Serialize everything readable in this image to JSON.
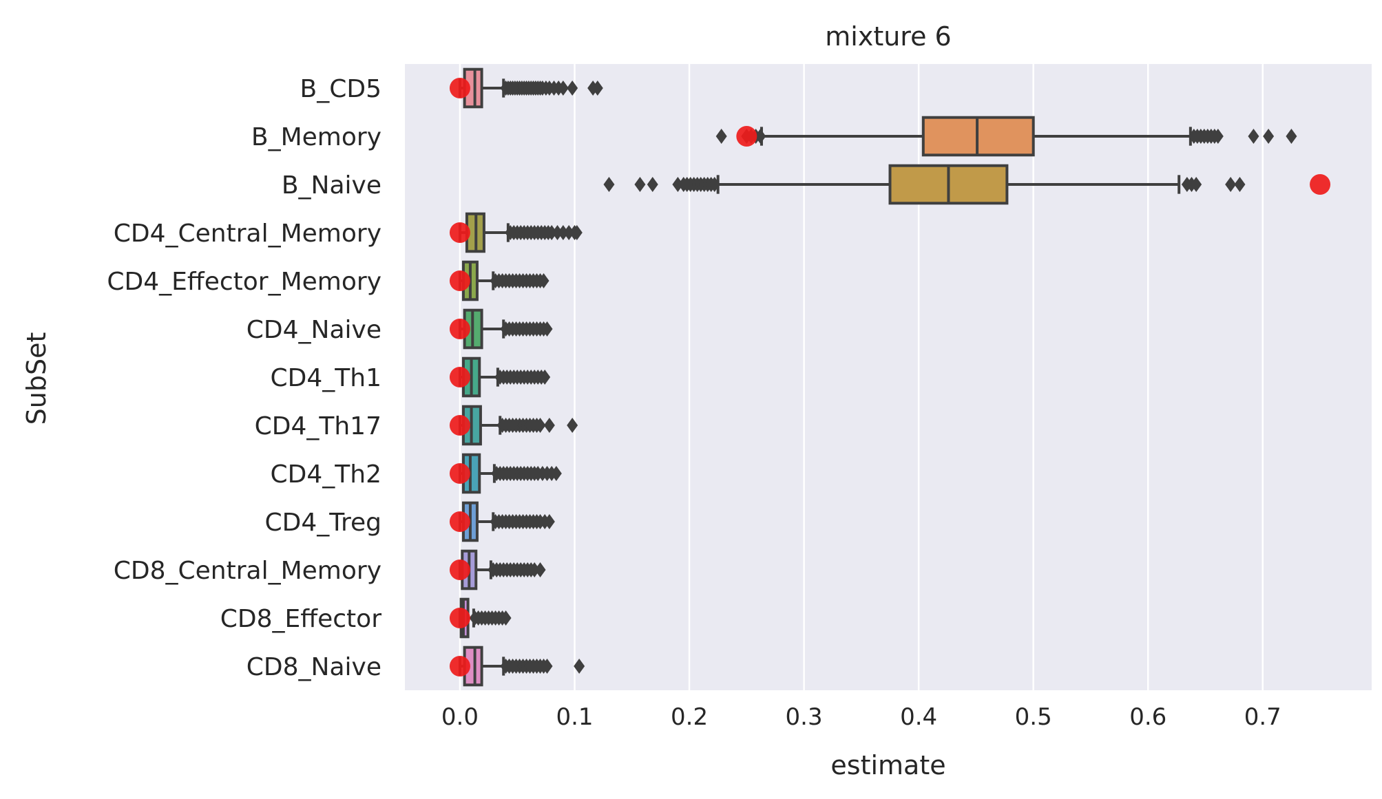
{
  "chart_data": {
    "type": "boxplot",
    "title": "mixture 6",
    "xlabel": "estimate",
    "ylabel": "SubSet",
    "xlim": [
      -0.048,
      0.795
    ],
    "xticks": [
      "0.0",
      "0.1",
      "0.2",
      "0.3",
      "0.4",
      "0.5",
      "0.6",
      "0.7"
    ],
    "grid": true,
    "background": "#eaeaf2",
    "box_edge_color": "#3f3f3f",
    "truth_marker_color": "#ee1b1b",
    "categories": [
      {
        "name": "B_CD5",
        "color": "#e8919c",
        "q1": 0.004,
        "median": 0.013,
        "q3": 0.019,
        "whisker_low": 0.0,
        "whisker_high": 0.038,
        "outliers": [
          0.04,
          0.042,
          0.044,
          0.046,
          0.048,
          0.05,
          0.052,
          0.054,
          0.056,
          0.058,
          0.06,
          0.062,
          0.064,
          0.066,
          0.068,
          0.07,
          0.072,
          0.075,
          0.078,
          0.082,
          0.086,
          0.09,
          0.098,
          0.116,
          0.12
        ],
        "truth": 0.0
      },
      {
        "name": "B_Memory",
        "color": "#e0935e",
        "q1": 0.404,
        "median": 0.451,
        "q3": 0.5,
        "whisker_low": 0.263,
        "whisker_high": 0.637,
        "outliers": [
          0.228,
          0.25,
          0.254,
          0.258,
          0.262,
          0.64,
          0.643,
          0.646,
          0.649,
          0.652,
          0.655,
          0.658,
          0.661,
          0.692,
          0.705,
          0.725
        ],
        "truth": 0.25
      },
      {
        "name": "B_Naive",
        "color": "#c19a49",
        "q1": 0.375,
        "median": 0.426,
        "q3": 0.477,
        "whisker_low": 0.225,
        "whisker_high": 0.627,
        "outliers": [
          0.13,
          0.157,
          0.168,
          0.19,
          0.195,
          0.198,
          0.201,
          0.204,
          0.207,
          0.21,
          0.213,
          0.216,
          0.219,
          0.222,
          0.634,
          0.638,
          0.642,
          0.672,
          0.68
        ],
        "truth": 0.75
      },
      {
        "name": "CD4_Central_Memory",
        "color": "#a3a04b",
        "q1": 0.006,
        "median": 0.014,
        "q3": 0.021,
        "whisker_low": 0.0,
        "whisker_high": 0.042,
        "outliers": [
          0.044,
          0.047,
          0.05,
          0.053,
          0.056,
          0.059,
          0.062,
          0.065,
          0.068,
          0.071,
          0.074,
          0.077,
          0.08,
          0.085,
          0.09,
          0.095,
          0.1,
          0.102
        ],
        "truth": 0.0
      },
      {
        "name": "CD4_Effector_Memory",
        "color": "#8ba84c",
        "q1": 0.003,
        "median": 0.009,
        "q3": 0.015,
        "whisker_low": 0.0,
        "whisker_high": 0.029,
        "outliers": [
          0.031,
          0.034,
          0.037,
          0.04,
          0.043,
          0.046,
          0.049,
          0.052,
          0.055,
          0.058,
          0.061,
          0.064,
          0.067,
          0.07,
          0.073
        ],
        "truth": 0.0
      },
      {
        "name": "CD4_Naive",
        "color": "#55ab6f",
        "q1": 0.004,
        "median": 0.011,
        "q3": 0.019,
        "whisker_low": 0.0,
        "whisker_high": 0.038,
        "outliers": [
          0.04,
          0.043,
          0.046,
          0.049,
          0.052,
          0.055,
          0.058,
          0.061,
          0.064,
          0.067,
          0.07,
          0.073,
          0.076
        ],
        "truth": 0.0
      },
      {
        "name": "CD4_Th1",
        "color": "#46a98a",
        "q1": 0.003,
        "median": 0.01,
        "q3": 0.017,
        "whisker_low": 0.0,
        "whisker_high": 0.033,
        "outliers": [
          0.035,
          0.038,
          0.041,
          0.044,
          0.047,
          0.05,
          0.053,
          0.056,
          0.059,
          0.062,
          0.065,
          0.068,
          0.071,
          0.074
        ],
        "truth": 0.0
      },
      {
        "name": "CD4_Th17",
        "color": "#48a6a1",
        "q1": 0.003,
        "median": 0.01,
        "q3": 0.018,
        "whisker_low": 0.0,
        "whisker_high": 0.035,
        "outliers": [
          0.037,
          0.04,
          0.043,
          0.046,
          0.049,
          0.052,
          0.055,
          0.058,
          0.061,
          0.064,
          0.067,
          0.07,
          0.078,
          0.098
        ],
        "truth": 0.0
      },
      {
        "name": "CD4_Th2",
        "color": "#4aa3b7",
        "q1": 0.003,
        "median": 0.009,
        "q3": 0.017,
        "whisker_low": 0.0,
        "whisker_high": 0.03,
        "outliers": [
          0.032,
          0.035,
          0.038,
          0.041,
          0.044,
          0.047,
          0.05,
          0.053,
          0.056,
          0.059,
          0.062,
          0.065,
          0.068,
          0.072,
          0.076,
          0.08,
          0.084
        ],
        "truth": 0.0
      },
      {
        "name": "CD4_Treg",
        "color": "#6e9fd6",
        "q1": 0.003,
        "median": 0.009,
        "q3": 0.015,
        "whisker_low": 0.0,
        "whisker_high": 0.029,
        "outliers": [
          0.031,
          0.034,
          0.037,
          0.04,
          0.043,
          0.046,
          0.049,
          0.052,
          0.055,
          0.058,
          0.061,
          0.064,
          0.067,
          0.07,
          0.074,
          0.078
        ],
        "truth": 0.0
      },
      {
        "name": "CD8_Central_Memory",
        "color": "#a69cd8",
        "q1": 0.002,
        "median": 0.008,
        "q3": 0.014,
        "whisker_low": 0.0,
        "whisker_high": 0.027,
        "outliers": [
          0.029,
          0.032,
          0.035,
          0.038,
          0.041,
          0.044,
          0.047,
          0.05,
          0.053,
          0.056,
          0.059,
          0.062,
          0.065,
          0.07
        ],
        "truth": 0.0
      },
      {
        "name": "CD8_Effector",
        "color": "#c48fd6",
        "q1": 0.001,
        "median": 0.003,
        "q3": 0.007,
        "whisker_low": 0.0,
        "whisker_high": 0.012,
        "outliers": [
          0.013,
          0.016,
          0.019,
          0.022,
          0.025,
          0.028,
          0.031,
          0.034,
          0.037,
          0.04
        ],
        "truth": 0.0
      },
      {
        "name": "CD8_Naive",
        "color": "#df8ec4",
        "q1": 0.004,
        "median": 0.013,
        "q3": 0.019,
        "whisker_low": 0.0,
        "whisker_high": 0.038,
        "outliers": [
          0.04,
          0.043,
          0.046,
          0.049,
          0.052,
          0.055,
          0.058,
          0.061,
          0.064,
          0.067,
          0.07,
          0.073,
          0.076,
          0.104
        ],
        "truth": 0.0
      }
    ]
  }
}
